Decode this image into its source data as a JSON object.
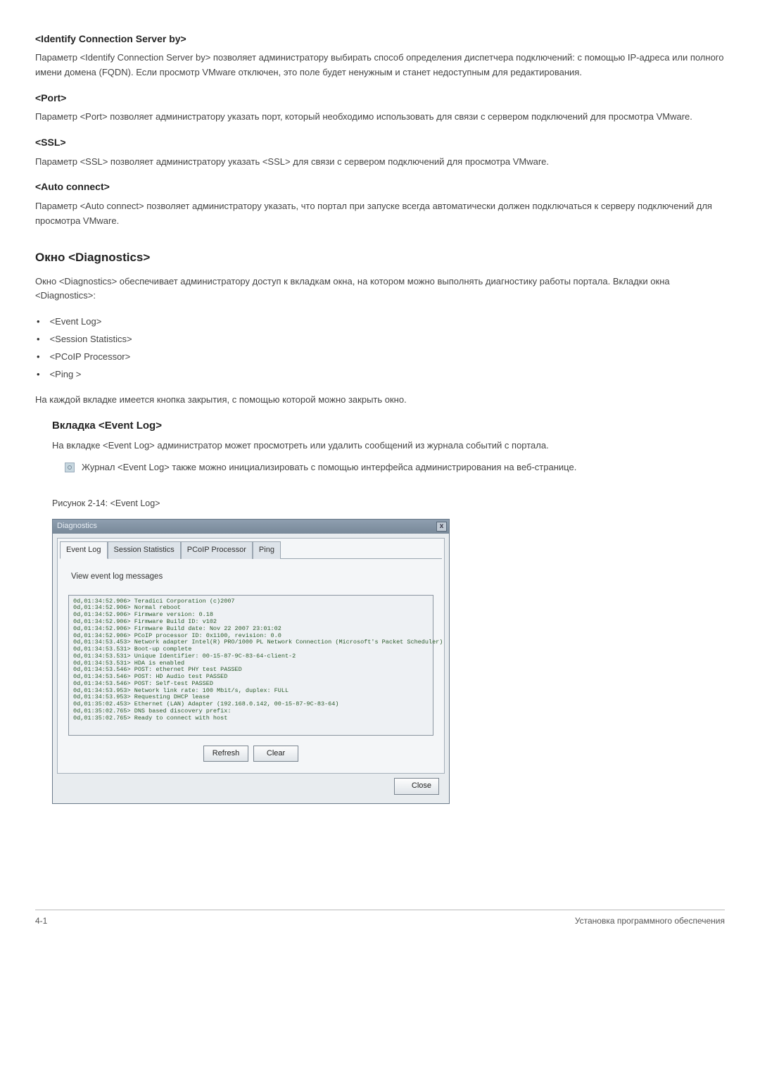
{
  "sections": {
    "identify": {
      "title": "<Identify Connection Server by>",
      "desc": "Параметр <Identify Connection Server by> позволяет администратору выбирать способ определения диспетчера подключений: с помощью IP-адреса или полного имени домена (FQDN). Если просмотр VMware отключен, это поле будет ненужным и станет недоступным для редактирования."
    },
    "port": {
      "title": "<Port>",
      "desc": "Параметр <Port> позволяет администратору указать порт, который необходимо использовать для связи с сервером подключений для просмотра VMware."
    },
    "ssl": {
      "title": "<SSL>",
      "desc": "Параметр <SSL> позволяет администратору указать <SSL> для связи с сервером подключений для просмотра VMware."
    },
    "auto": {
      "title": "<Auto connect>",
      "desc": "Параметр <Auto connect> позволяет администратору указать, что портал при запуске всегда автоматически должен подключаться к серверу подключений для просмотра VMware."
    },
    "diagnostics": {
      "title": "Окно <Diagnostics>",
      "desc": "Окно <Diagnostics> обеспечивает администратору доступ к вкладкам окна, на котором можно выполнять диагностику работы портала. Вкладки окна <Diagnostics>:",
      "items": [
        "<Event Log>",
        "<Session Statistics>",
        "<PCoIP Processor>",
        "<Ping >"
      ],
      "after": "На каждой вкладке имеется кнопка закрытия, с помощью которой можно закрыть окно."
    },
    "eventlog": {
      "title": "Вкладка <Event Log>",
      "desc": "На вкладке <Event Log> администратор может просмотреть или удалить сообщений из журнала событий с портала.",
      "note": "Журнал <Event Log> также можно инициализировать с помощью интерфейса администрирования на веб-странице."
    },
    "fig_caption": "Рисунок 2-14: <Event Log>"
  },
  "dialog": {
    "title": "Diagnostics",
    "tabs": [
      "Event Log",
      "Session Statistics",
      "PCoIP Processor",
      "Ping"
    ],
    "view_label": "View event log messages",
    "log": "0d,01:34:52.906> Teradici Corporation (c)2007\n0d,01:34:52.906> Normal reboot\n0d,01:34:52.906> Firmware version: 0.18\n0d,01:34:52.906> Firmware Build ID: v102\n0d,01:34:52.906> Firmware Build date: Nov 22 2007 23:01:02\n0d,01:34:52.906> PCoIP processor ID: 0x1100, revision: 0.0\n0d,01:34:53.453> Network adapter Intel(R) PRO/1000 PL Network Connection (Microsoft's Packet Scheduler)\n0d,01:34:53.531> Boot-up complete\n0d,01:34:53.531> Unique Identifier: 00-15-87-9C-83-64-client-2\n0d,01:34:53.531> HDA is enabled\n0d,01:34:53.546> POST: ethernet PHY test PASSED\n0d,01:34:53.546> POST: HD Audio test PASSED\n0d,01:34:53.546> POST: Self-test PASSED\n0d,01:34:53.953> Network link rate: 100 Mbit/s, duplex: FULL\n0d,01:34:53.953> Requesting DHCP lease\n0d,01:35:02.453> Ethernet (LAN) Adapter (192.168.0.142, 00-15-87-9C-83-64)\n0d,01:35:02.765> DNS based discovery prefix:\n0d,01:35:02.765> Ready to connect with host",
    "refresh": "Refresh",
    "clear": "Clear",
    "close": "Close"
  },
  "footer": {
    "left": "4-1",
    "right": "Установка программного обеспечения"
  }
}
